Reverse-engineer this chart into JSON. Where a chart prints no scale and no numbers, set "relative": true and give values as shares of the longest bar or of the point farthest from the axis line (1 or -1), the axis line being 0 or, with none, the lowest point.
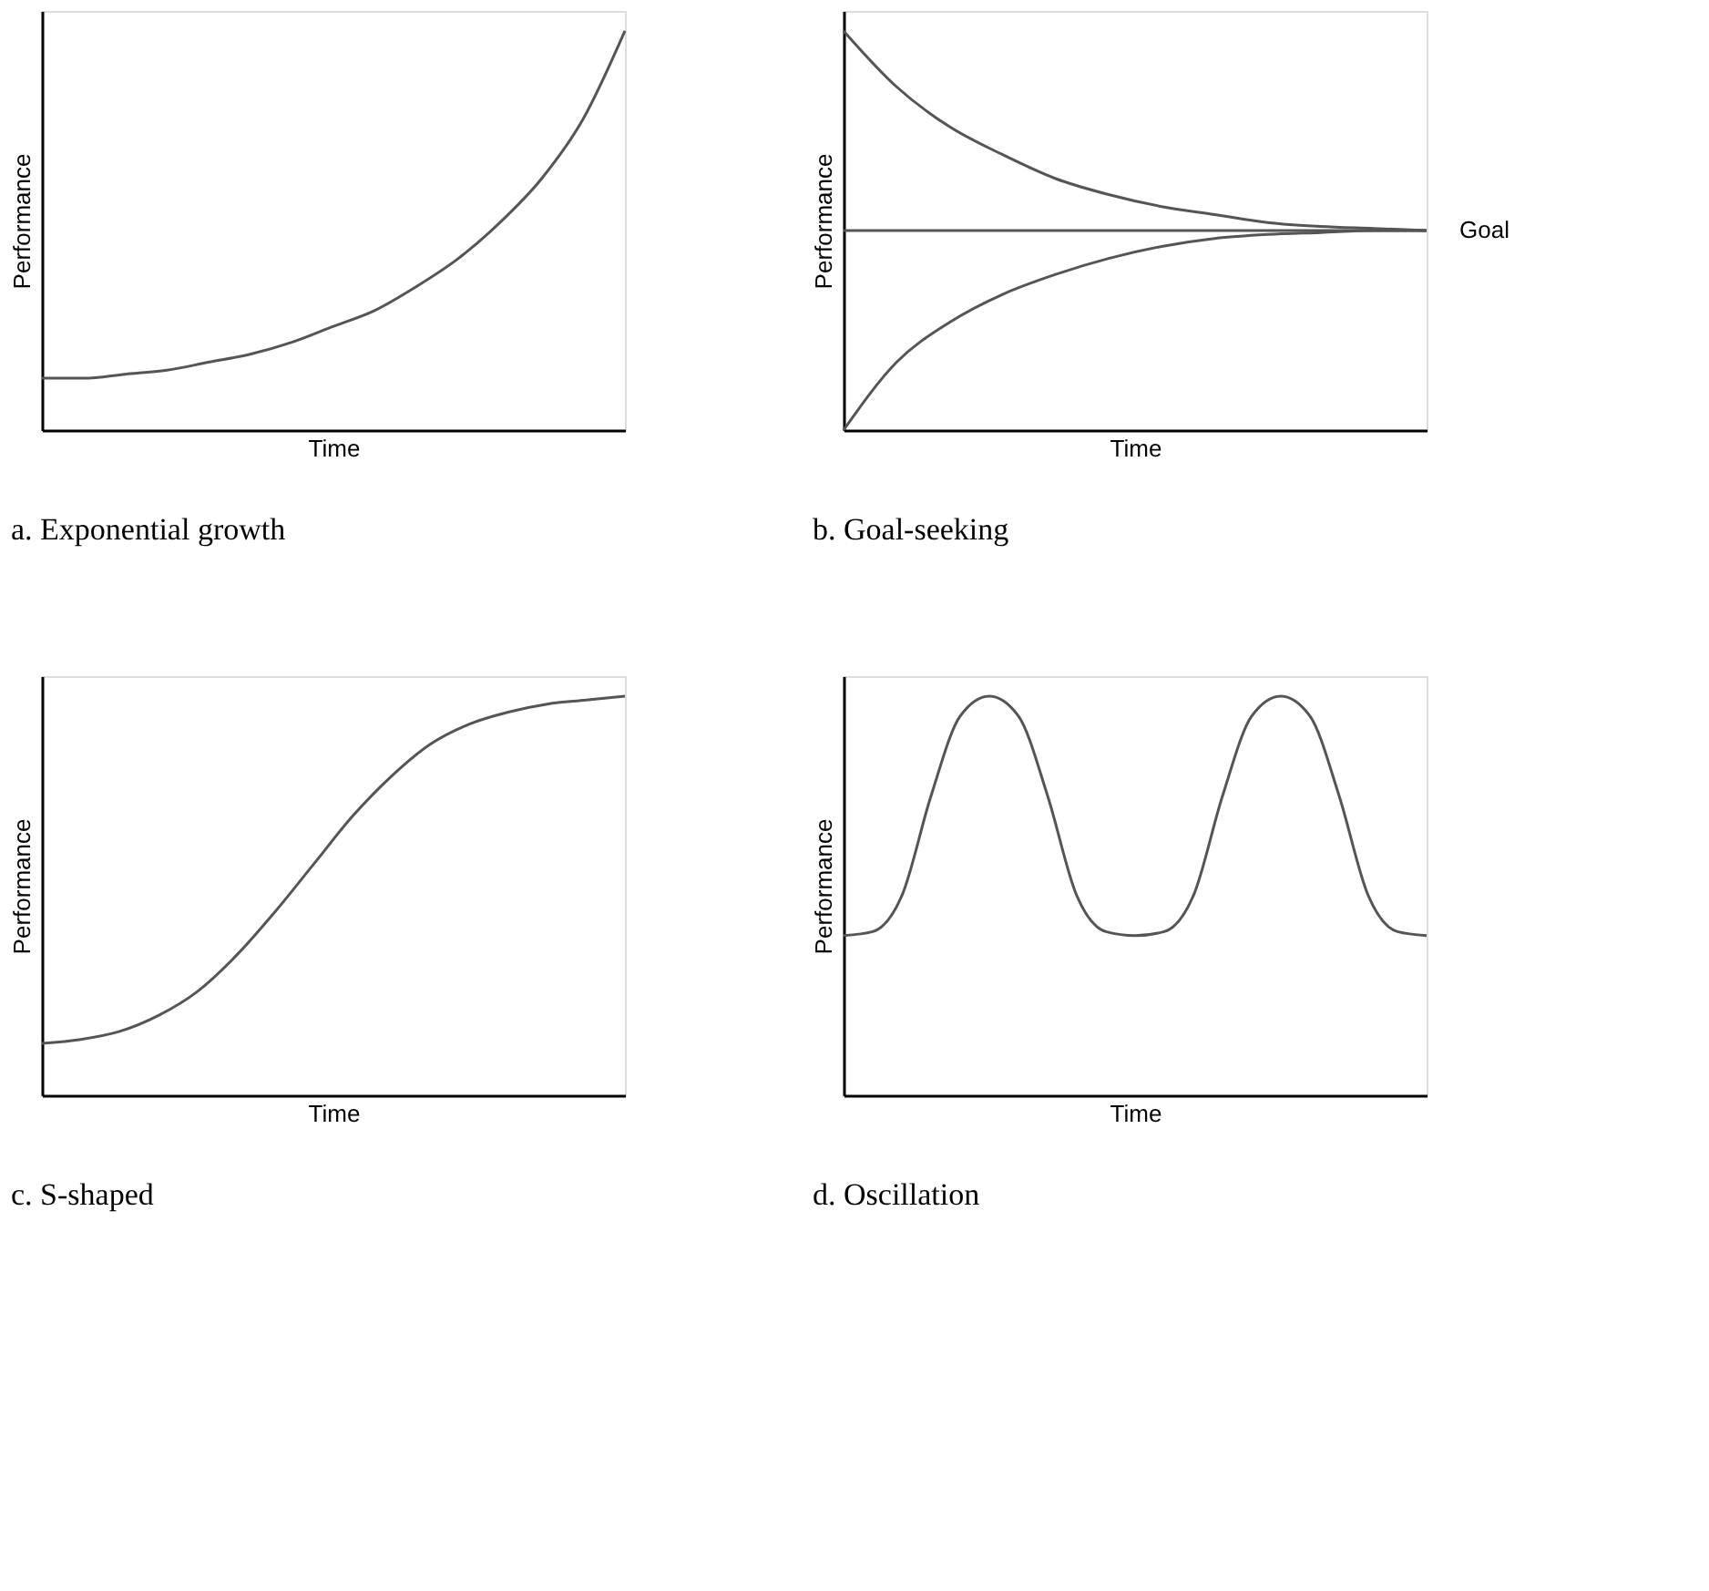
{
  "chart_data": [
    {
      "type": "line",
      "relative": true,
      "xlabel": "Time",
      "ylabel": "Performance",
      "annotations": [
        "a. Exponential growth"
      ],
      "categories": [
        null,
        null,
        null,
        null,
        null,
        null,
        null,
        null,
        null,
        null,
        null,
        null,
        null,
        null,
        null
      ],
      "series": [
        {
          "color": "#555555",
          "values": [
            0.13,
            0.13,
            0.14,
            0.15,
            0.17,
            0.19,
            0.22,
            0.26,
            0.3,
            0.36,
            0.43,
            0.52,
            0.63,
            0.78,
            1.0
          ]
        }
      ],
      "grid": false,
      "marker": "none",
      "line_style": "solid"
    },
    {
      "type": "line",
      "relative": true,
      "xlabel": "Time",
      "ylabel": "Performance",
      "annotations": [
        "b. Goal-seeking"
      ],
      "categories": [
        null,
        null,
        null,
        null,
        null,
        null,
        null,
        null,
        null,
        null,
        null,
        null
      ],
      "series": [
        {
          "color": "#555555",
          "values": [
            1.0,
            0.86,
            0.76,
            0.69,
            0.63,
            0.59,
            0.56,
            0.54,
            0.52,
            0.51,
            0.505,
            0.5
          ]
        },
        {
          "color": "#555555",
          "values": [
            0.0,
            0.17,
            0.27,
            0.34,
            0.39,
            0.43,
            0.46,
            0.48,
            0.49,
            0.495,
            0.5,
            0.5
          ]
        }
      ],
      "ref_lines": [
        {
          "axis": "y",
          "value": 0.5,
          "label": "Goal",
          "color": "#555555"
        }
      ],
      "grid": false,
      "marker": "none",
      "line_style": "solid"
    },
    {
      "type": "line",
      "relative": true,
      "xlabel": "Time",
      "ylabel": "Performance",
      "annotations": [
        "c. S-shaped"
      ],
      "categories": [
        null,
        null,
        null,
        null,
        null,
        null,
        null,
        null,
        null,
        null,
        null,
        null,
        null,
        null,
        null,
        null
      ],
      "series": [
        {
          "color": "#555555",
          "values": [
            0.13,
            0.14,
            0.16,
            0.2,
            0.26,
            0.35,
            0.46,
            0.58,
            0.7,
            0.8,
            0.88,
            0.93,
            0.96,
            0.98,
            0.99,
            1.0
          ]
        }
      ],
      "grid": false,
      "marker": "none",
      "line_style": "solid"
    },
    {
      "type": "line",
      "relative": true,
      "xlabel": "Time",
      "ylabel": "Performance",
      "annotations": [
        "d. Oscillation"
      ],
      "categories": [
        null,
        null,
        null,
        null,
        null,
        null,
        null,
        null,
        null,
        null,
        null,
        null,
        null,
        null,
        null,
        null,
        null,
        null,
        null,
        null,
        null
      ],
      "series": [
        {
          "color": "#555555",
          "values": [
            0.4,
            0.41,
            0.5,
            0.75,
            0.95,
            1.0,
            0.95,
            0.75,
            0.5,
            0.41,
            0.4,
            0.41,
            0.5,
            0.75,
            0.95,
            1.0,
            0.95,
            0.75,
            0.5,
            0.41,
            0.4
          ]
        }
      ],
      "grid": false,
      "marker": "none",
      "line_style": "solid"
    }
  ]
}
